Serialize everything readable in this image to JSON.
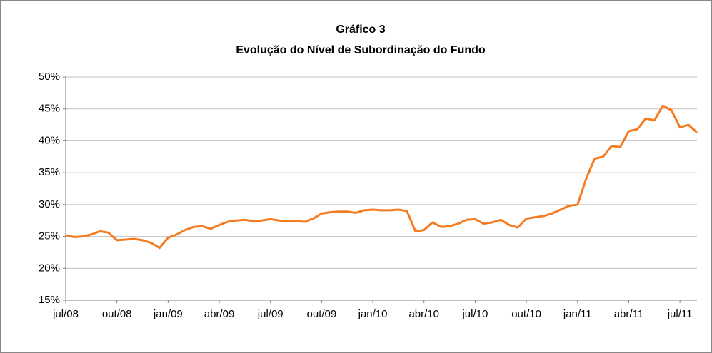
{
  "chart_data": {
    "type": "line",
    "title": "Gráfico 3",
    "subtitle": "Evolução do Nível de Subordinação do Fundo",
    "categories": [
      "jul/08",
      null,
      null,
      null,
      null,
      null,
      "out/08",
      null,
      null,
      null,
      null,
      null,
      "jan/09",
      null,
      null,
      null,
      null,
      null,
      "abr/09",
      null,
      null,
      null,
      null,
      null,
      "jul/09",
      null,
      null,
      null,
      null,
      null,
      "out/09",
      null,
      null,
      null,
      null,
      null,
      "jan/10",
      null,
      null,
      null,
      null,
      null,
      "abr/10",
      null,
      null,
      null,
      null,
      null,
      "jul/10",
      null,
      null,
      null,
      null,
      null,
      "out/10",
      null,
      null,
      null,
      null,
      null,
      "jan/11",
      null,
      null,
      null,
      null,
      null,
      "abr/11",
      null,
      null,
      null,
      null,
      null,
      "jul/11",
      null,
      null
    ],
    "values": [
      25.2,
      24.9,
      25.0,
      25.3,
      25.8,
      25.6,
      24.4,
      24.5,
      24.6,
      24.4,
      24.0,
      23.2,
      24.8,
      25.3,
      26.0,
      26.5,
      26.6,
      26.2,
      26.8,
      27.3,
      27.5,
      27.6,
      27.4,
      27.5,
      27.7,
      27.5,
      27.4,
      27.4,
      27.3,
      27.8,
      28.6,
      28.8,
      28.9,
      28.9,
      28.7,
      29.1,
      29.2,
      29.1,
      29.1,
      29.2,
      29.0,
      25.8,
      26.0,
      27.2,
      26.5,
      26.6,
      27.0,
      27.6,
      27.7,
      27.0,
      27.2,
      27.6,
      26.8,
      26.4,
      27.8,
      28.0,
      28.2,
      28.6,
      29.2,
      29.8,
      30.0,
      34.0,
      37.2,
      37.5,
      39.2,
      39.0,
      41.5,
      41.8,
      43.5,
      43.2,
      45.5,
      44.8,
      42.1,
      42.5,
      41.3
    ],
    "color": "#f47b20",
    "ylim": [
      15,
      50
    ],
    "yticks": [
      {
        "value": 15,
        "label": "15%"
      },
      {
        "value": 20,
        "label": "20%"
      },
      {
        "value": 25,
        "label": "25%"
      },
      {
        "value": 30,
        "label": "30%"
      },
      {
        "value": 35,
        "label": "35%"
      },
      {
        "value": 40,
        "label": "40%"
      },
      {
        "value": 45,
        "label": "45%"
      },
      {
        "value": 50,
        "label": "50%"
      }
    ],
    "grid": true
  }
}
